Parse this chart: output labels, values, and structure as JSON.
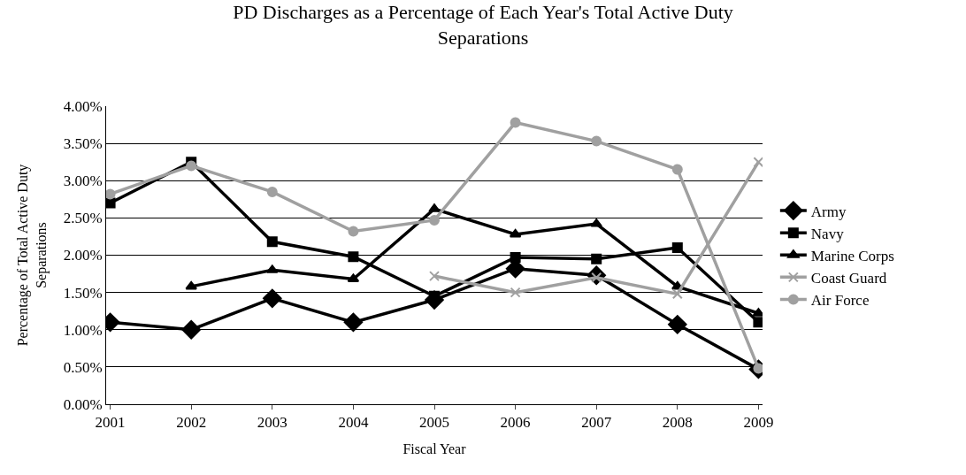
{
  "chart_data": {
    "type": "line",
    "title": "PD Discharges as a Percentage of Each Year's Total Active Duty Separations",
    "xlabel": "Fiscal Year",
    "ylabel": "Percentage of Total Active Duty Separations",
    "categories": [
      "2001",
      "2002",
      "2003",
      "2004",
      "2005",
      "2006",
      "2007",
      "2008",
      "2009"
    ],
    "series": [
      {
        "name": "Army",
        "color": "#000000",
        "marker": "diamond",
        "values": [
          1.1,
          1.0,
          1.42,
          1.1,
          1.4,
          1.82,
          1.73,
          1.07,
          0.47
        ]
      },
      {
        "name": "Navy",
        "color": "#000000",
        "marker": "square",
        "values": [
          2.7,
          3.25,
          2.18,
          1.98,
          1.45,
          1.97,
          1.95,
          2.1,
          1.1
        ]
      },
      {
        "name": "Marine Corps",
        "color": "#000000",
        "marker": "triangle",
        "values": [
          null,
          1.58,
          1.8,
          1.68,
          2.62,
          2.28,
          2.42,
          1.58,
          1.22
        ]
      },
      {
        "name": "Coast Guard",
        "color": "#a0a0a0",
        "marker": "cross",
        "values": [
          null,
          null,
          null,
          null,
          1.72,
          1.5,
          1.7,
          1.48,
          3.25
        ]
      },
      {
        "name": "Air Force",
        "color": "#a0a0a0",
        "marker": "circle",
        "values": [
          2.82,
          3.2,
          2.85,
          2.32,
          2.47,
          3.78,
          3.53,
          3.15,
          0.48
        ]
      }
    ],
    "ylim": [
      0,
      4
    ],
    "yticks": [
      {
        "value": 0,
        "label": "0.00%"
      },
      {
        "value": 0.5,
        "label": "0.50%"
      },
      {
        "value": 1,
        "label": "1.00%"
      },
      {
        "value": 1.5,
        "label": "1.50%"
      },
      {
        "value": 2,
        "label": "2.00%"
      },
      {
        "value": 2.5,
        "label": "2.50%"
      },
      {
        "value": 3,
        "label": "3.00%"
      },
      {
        "value": 3.5,
        "label": "3.50%"
      },
      {
        "value": 4,
        "label": "4.00%"
      }
    ],
    "grid": "y",
    "legend": "right",
    "line_style": "solid"
  }
}
